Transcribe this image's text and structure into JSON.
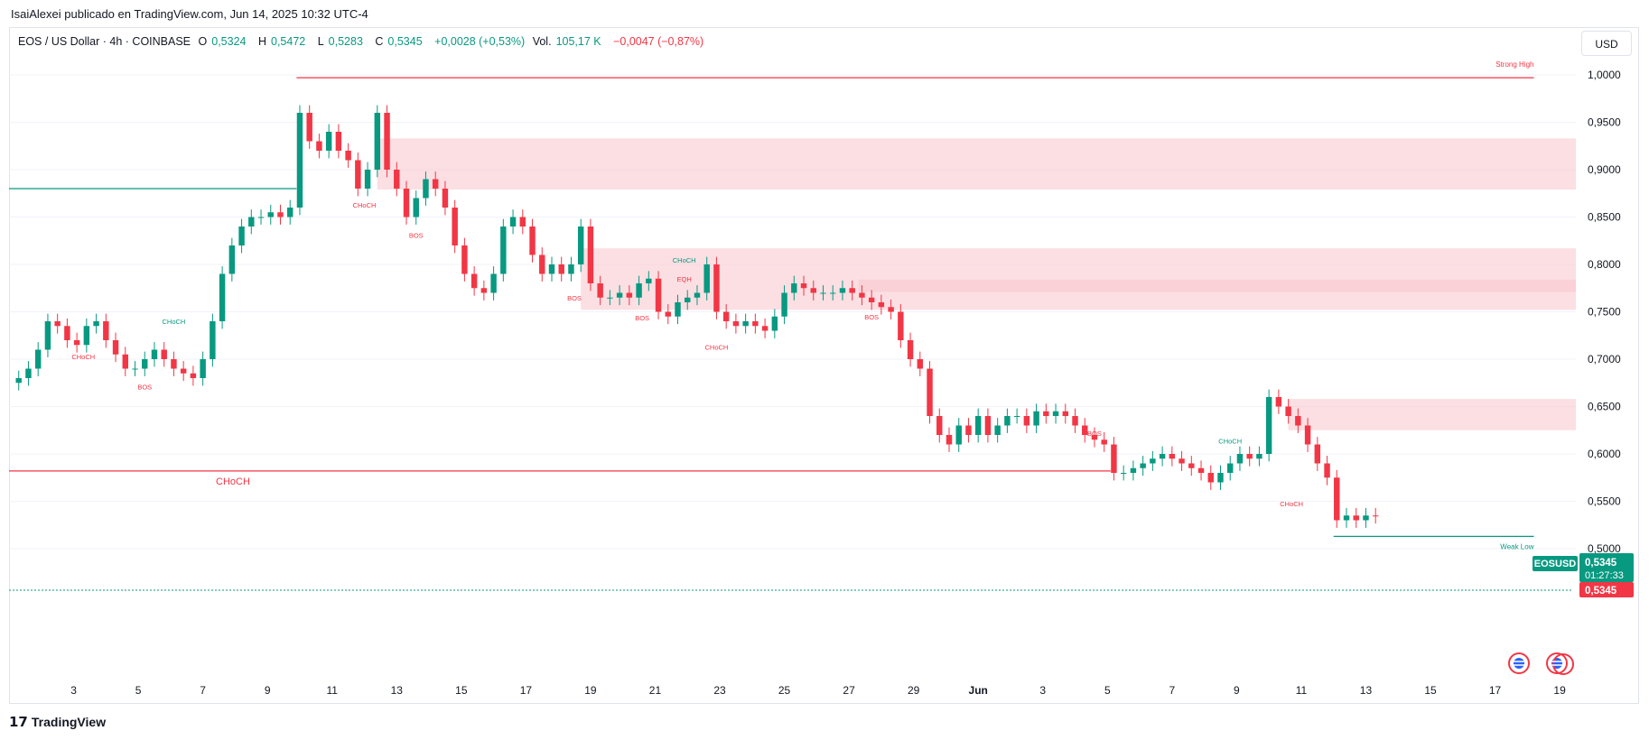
{
  "header": {
    "publisher": "IsaiAlexei publicado en TradingView.com, Jun 14, 2025 10:32 UTC-4"
  },
  "legend": {
    "symbol": "EOS / US Dollar · 4h · COINBASE",
    "o_label": "O",
    "o_value": "0,5324",
    "h_label": "H",
    "h_value": "0,5472",
    "l_label": "L",
    "l_value": "0,5283",
    "c_label": "C",
    "c_value": "0,5345",
    "change": "+0,0028 (+0,53%)",
    "vol_label": "Vol.",
    "vol_value": "105,17 K",
    "vol_change": "−0,0047 (−0,87%)"
  },
  "currency_button": "USD",
  "price_tags": {
    "symbol": "EOSUSD",
    "last": "0,5345",
    "countdown": "01:27:33",
    "close": "0,5345"
  },
  "footer": {
    "brand": "TradingView"
  },
  "colors": {
    "up": "#089981",
    "down": "#f23645",
    "zone": "#f7c5cc",
    "grid": "#f0f3fa"
  },
  "chart_data": {
    "type": "candlestick",
    "title": "EOS / US Dollar · 4h · COINBASE",
    "ylim": [
      0.46,
      1.02
    ],
    "y_ticks": [
      "1,0000",
      "0,9500",
      "0,9000",
      "0,8500",
      "0,8000",
      "0,7500",
      "0,7000",
      "0,6500",
      "0,6000",
      "0,5500",
      "0,5000"
    ],
    "y_tick_values": [
      1.0,
      0.95,
      0.9,
      0.85,
      0.8,
      0.75,
      0.7,
      0.65,
      0.6,
      0.55,
      0.5
    ],
    "x_ticks": [
      "3",
      "5",
      "7",
      "9",
      "11",
      "13",
      "15",
      "17",
      "19",
      "21",
      "23",
      "25",
      "27",
      "29",
      "Jun",
      "3",
      "5",
      "7",
      "9",
      "11",
      "13",
      "15",
      "17",
      "19"
    ],
    "x_domain_days": [
      0,
      48.5
    ],
    "x_tick_days": [
      2,
      4,
      6,
      8,
      10,
      12,
      14,
      16,
      18,
      20,
      22,
      24,
      26,
      28,
      30,
      32,
      34,
      36,
      38,
      40,
      42,
      44,
      46,
      48
    ],
    "series_close": [
      [
        0,
        0.675
      ],
      [
        0.3,
        0.68
      ],
      [
        0.6,
        0.69
      ],
      [
        0.9,
        0.71
      ],
      [
        1.2,
        0.74
      ],
      [
        1.5,
        0.735
      ],
      [
        1.8,
        0.72
      ],
      [
        2.1,
        0.715
      ],
      [
        2.4,
        0.735
      ],
      [
        2.7,
        0.74
      ],
      [
        3.0,
        0.72
      ],
      [
        3.3,
        0.705
      ],
      [
        3.6,
        0.69
      ],
      [
        3.9,
        0.69
      ],
      [
        4.2,
        0.7
      ],
      [
        4.5,
        0.71
      ],
      [
        4.8,
        0.7
      ],
      [
        5.1,
        0.69
      ],
      [
        5.4,
        0.685
      ],
      [
        5.7,
        0.68
      ],
      [
        6.0,
        0.7
      ],
      [
        6.3,
        0.74
      ],
      [
        6.6,
        0.79
      ],
      [
        6.9,
        0.82
      ],
      [
        7.2,
        0.84
      ],
      [
        7.5,
        0.85
      ],
      [
        7.8,
        0.85
      ],
      [
        8.1,
        0.855
      ],
      [
        8.4,
        0.85
      ],
      [
        8.7,
        0.86
      ],
      [
        9.0,
        0.96
      ],
      [
        9.3,
        0.93
      ],
      [
        9.6,
        0.92
      ],
      [
        9.9,
        0.94
      ],
      [
        10.2,
        0.92
      ],
      [
        10.5,
        0.91
      ],
      [
        10.8,
        0.88
      ],
      [
        11.1,
        0.9
      ],
      [
        11.4,
        0.96
      ],
      [
        11.7,
        0.9
      ],
      [
        12.0,
        0.88
      ],
      [
        12.3,
        0.85
      ],
      [
        12.6,
        0.87
      ],
      [
        12.9,
        0.89
      ],
      [
        13.2,
        0.88
      ],
      [
        13.5,
        0.86
      ],
      [
        13.8,
        0.82
      ],
      [
        14.1,
        0.79
      ],
      [
        14.4,
        0.775
      ],
      [
        14.7,
        0.77
      ],
      [
        15.0,
        0.79
      ],
      [
        15.3,
        0.84
      ],
      [
        15.6,
        0.85
      ],
      [
        15.9,
        0.84
      ],
      [
        16.2,
        0.81
      ],
      [
        16.5,
        0.79
      ],
      [
        16.8,
        0.8
      ],
      [
        17.1,
        0.79
      ],
      [
        17.4,
        0.8
      ],
      [
        17.7,
        0.84
      ],
      [
        18.0,
        0.78
      ],
      [
        18.3,
        0.765
      ],
      [
        18.6,
        0.765
      ],
      [
        18.9,
        0.77
      ],
      [
        19.2,
        0.765
      ],
      [
        19.5,
        0.78
      ],
      [
        19.8,
        0.785
      ],
      [
        20.1,
        0.75
      ],
      [
        20.4,
        0.745
      ],
      [
        20.7,
        0.76
      ],
      [
        21.0,
        0.765
      ],
      [
        21.3,
        0.77
      ],
      [
        21.6,
        0.8
      ],
      [
        21.9,
        0.75
      ],
      [
        22.2,
        0.74
      ],
      [
        22.5,
        0.735
      ],
      [
        22.8,
        0.74
      ],
      [
        23.1,
        0.735
      ],
      [
        23.4,
        0.73
      ],
      [
        23.7,
        0.745
      ],
      [
        24.0,
        0.77
      ],
      [
        24.3,
        0.78
      ],
      [
        24.6,
        0.775
      ],
      [
        24.9,
        0.77
      ],
      [
        25.2,
        0.77
      ],
      [
        25.5,
        0.77
      ],
      [
        25.8,
        0.775
      ],
      [
        26.1,
        0.77
      ],
      [
        26.4,
        0.765
      ],
      [
        26.7,
        0.76
      ],
      [
        27.0,
        0.755
      ],
      [
        27.3,
        0.75
      ],
      [
        27.6,
        0.72
      ],
      [
        27.9,
        0.7
      ],
      [
        28.2,
        0.69
      ],
      [
        28.5,
        0.64
      ],
      [
        28.8,
        0.62
      ],
      [
        29.1,
        0.61
      ],
      [
        29.4,
        0.63
      ],
      [
        29.7,
        0.62
      ],
      [
        30.0,
        0.64
      ],
      [
        30.3,
        0.62
      ],
      [
        30.6,
        0.63
      ],
      [
        30.9,
        0.64
      ],
      [
        31.2,
        0.64
      ],
      [
        31.5,
        0.63
      ],
      [
        31.8,
        0.645
      ],
      [
        32.1,
        0.64
      ],
      [
        32.4,
        0.645
      ],
      [
        32.7,
        0.64
      ],
      [
        33.0,
        0.63
      ],
      [
        33.3,
        0.62
      ],
      [
        33.6,
        0.615
      ],
      [
        33.9,
        0.61
      ],
      [
        34.2,
        0.58
      ],
      [
        34.5,
        0.58
      ],
      [
        34.8,
        0.585
      ],
      [
        35.1,
        0.59
      ],
      [
        35.4,
        0.595
      ],
      [
        35.7,
        0.6
      ],
      [
        36.0,
        0.595
      ],
      [
        36.3,
        0.59
      ],
      [
        36.6,
        0.585
      ],
      [
        36.9,
        0.58
      ],
      [
        37.2,
        0.57
      ],
      [
        37.5,
        0.58
      ],
      [
        37.8,
        0.59
      ],
      [
        38.1,
        0.6
      ],
      [
        38.4,
        0.595
      ],
      [
        38.7,
        0.6
      ],
      [
        39.0,
        0.66
      ],
      [
        39.3,
        0.65
      ],
      [
        39.6,
        0.64
      ],
      [
        39.9,
        0.63
      ],
      [
        40.2,
        0.61
      ],
      [
        40.5,
        0.59
      ],
      [
        40.8,
        0.575
      ],
      [
        41.1,
        0.53
      ],
      [
        41.4,
        0.535
      ],
      [
        41.7,
        0.53
      ],
      [
        42.0,
        0.535
      ],
      [
        42.3,
        0.5345
      ]
    ],
    "zones": [
      {
        "from_day": 11.4,
        "to_day": 48.5,
        "low": 0.879,
        "high": 0.933
      },
      {
        "from_day": 17.7,
        "to_day": 48.5,
        "low": 0.752,
        "high": 0.817
      },
      {
        "from_day": 26.3,
        "to_day": 48.5,
        "low": 0.771,
        "high": 0.784
      },
      {
        "from_day": 39.6,
        "to_day": 48.5,
        "low": 0.625,
        "high": 0.658
      }
    ],
    "horizontal_levels": [
      {
        "label": "Strong High",
        "value": 0.997,
        "from_day": 8.9,
        "to_day": 47.2,
        "color": "down"
      },
      {
        "label": "CHoCH",
        "value": 0.582,
        "from_day": 0,
        "to_day": 34.1,
        "color": "down"
      },
      {
        "label": "Weak Low",
        "value": 0.513,
        "from_day": 41.0,
        "to_day": 47.2,
        "color": "up"
      }
    ],
    "annotations": [
      {
        "text": "CHoCH",
        "day": 2.3,
        "value": 0.7,
        "color": "down"
      },
      {
        "text": "CHoCH",
        "day": 5.1,
        "value": 0.737,
        "color": "up"
      },
      {
        "text": "BOS",
        "day": 4.2,
        "value": 0.668,
        "color": "down"
      },
      {
        "text": "CHoCH",
        "day": 11.0,
        "value": 0.86,
        "color": "down"
      },
      {
        "text": "BOS",
        "day": 12.6,
        "value": 0.828,
        "color": "down"
      },
      {
        "text": "BOS",
        "day": 17.5,
        "value": 0.762,
        "color": "down"
      },
      {
        "text": "BOS",
        "day": 19.6,
        "value": 0.741,
        "color": "down"
      },
      {
        "text": "CHoCH",
        "day": 20.9,
        "value": 0.802,
        "color": "up"
      },
      {
        "text": "EQH",
        "day": 20.9,
        "value": 0.782,
        "color": "down"
      },
      {
        "text": "CHoCH",
        "day": 21.9,
        "value": 0.71,
        "color": "down"
      },
      {
        "text": "BOS",
        "day": 26.7,
        "value": 0.742,
        "color": "down"
      },
      {
        "text": "BOS",
        "day": 33.6,
        "value": 0.619,
        "color": "down"
      },
      {
        "text": "CHoCH",
        "day": 37.8,
        "value": 0.611,
        "color": "up"
      },
      {
        "text": "CHoCH",
        "day": 39.7,
        "value": 0.545,
        "color": "down"
      }
    ]
  }
}
